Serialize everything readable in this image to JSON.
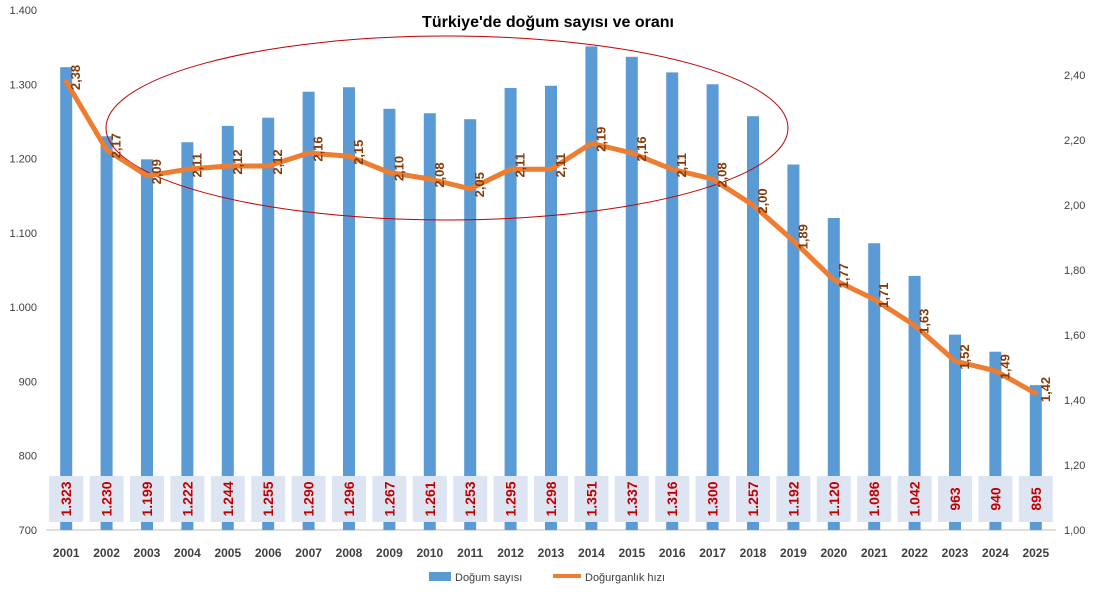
{
  "chart_data": {
    "type": "bar",
    "title": "Türkiye'de doğum sayısı ve oranı",
    "categories": [
      "2001",
      "2002",
      "2003",
      "2004",
      "2005",
      "2006",
      "2007",
      "2008",
      "2009",
      "2010",
      "2011",
      "2012",
      "2013",
      "2014",
      "2015",
      "2016",
      "2017",
      "2018",
      "2019",
      "2020",
      "2021",
      "2022",
      "2023",
      "2024",
      "2025"
    ],
    "series": [
      {
        "name": "Doğum sayısı",
        "type": "bar",
        "axis": "left",
        "color": "#5b9bd5",
        "values": [
          1323,
          1230,
          1199,
          1222,
          1244,
          1255,
          1290,
          1296,
          1267,
          1261,
          1253,
          1295,
          1298,
          1351,
          1337,
          1316,
          1300,
          1257,
          1192,
          1120,
          1086,
          1042,
          963,
          940,
          895
        ],
        "labels": [
          "1.323",
          "1.230",
          "1.199",
          "1.222",
          "1.244",
          "1.255",
          "1.290",
          "1.296",
          "1.267",
          "1.261",
          "1.253",
          "1.295",
          "1.298",
          "1.351",
          "1.337",
          "1.316",
          "1.300",
          "1.257",
          "1.192",
          "1.120",
          "1.086",
          "1.042",
          "963",
          "940",
          "895"
        ]
      },
      {
        "name": "Doğurganlık hızı",
        "type": "line",
        "axis": "right",
        "color": "#ed7d31",
        "values": [
          2.38,
          2.17,
          2.09,
          2.11,
          2.12,
          2.12,
          2.16,
          2.15,
          2.1,
          2.08,
          2.05,
          2.11,
          2.11,
          2.19,
          2.16,
          2.11,
          2.08,
          2.0,
          1.89,
          1.77,
          1.71,
          1.63,
          1.52,
          1.49,
          1.42
        ],
        "labels": [
          "2,38",
          "2,17",
          "2,09",
          "2,11",
          "2,12",
          "2,12",
          "2,16",
          "2,15",
          "2,10",
          "2,08",
          "2,05",
          "2,11",
          "2,11",
          "2,19",
          "2,16",
          "2,11",
          "2,08",
          "2,00",
          "1,89",
          "1,77",
          "1,71",
          "1,63",
          "1,52",
          "1,49",
          "1,42"
        ]
      }
    ],
    "y_left": {
      "range": [
        700,
        1400
      ],
      "ticks": [
        700,
        800,
        900,
        1000,
        1100,
        1200,
        1300,
        1400
      ],
      "tick_labels": [
        "700",
        "800",
        "900",
        "1.000",
        "1.100",
        "1.200",
        "1.300",
        "1.400"
      ]
    },
    "y_right": {
      "range": [
        1.0,
        2.6
      ],
      "ticks": [
        1.0,
        1.2,
        1.4,
        1.6,
        1.8,
        2.0,
        2.2,
        2.4,
        2.6
      ],
      "tick_labels": [
        "1,00",
        "1,20",
        "1,40",
        "1,60",
        "1,80",
        "2,00",
        "2,20",
        "2,40",
        ""
      ]
    },
    "grid": false,
    "legend": "bottom",
    "annotation_ellipse_color": "#c00000",
    "label_box_color": "#dde5f3"
  }
}
